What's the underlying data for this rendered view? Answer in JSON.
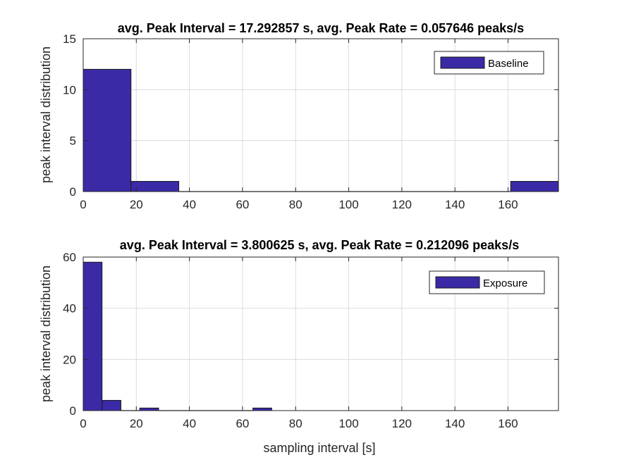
{
  "chart_data": [
    {
      "type": "bar",
      "title": "avg. Peak Interval = 17.292857 s, avg. Peak Rate = 0.057646 peaks/s",
      "xlabel": "",
      "ylabel": "peak interval distribution",
      "xlim": [
        0,
        179
      ],
      "ylim": [
        0,
        15
      ],
      "xticks": [
        "0",
        "20",
        "40",
        "60",
        "80",
        "100",
        "120",
        "140",
        "160"
      ],
      "yticks": [
        "0",
        "5",
        "10",
        "15"
      ],
      "grid": true,
      "legend_position": "top-right",
      "series": [
        {
          "name": "Baseline",
          "bins": [
            {
              "x0": 0,
              "x1": 18,
              "value": 12
            },
            {
              "x0": 18,
              "x1": 36,
              "value": 1
            },
            {
              "x0": 36,
              "x1": 54,
              "value": 0
            },
            {
              "x0": 54,
              "x1": 72,
              "value": 0
            },
            {
              "x0": 72,
              "x1": 90,
              "value": 0
            },
            {
              "x0": 90,
              "x1": 108,
              "value": 0
            },
            {
              "x0": 108,
              "x1": 126,
              "value": 0
            },
            {
              "x0": 126,
              "x1": 144,
              "value": 0
            },
            {
              "x0": 144,
              "x1": 161,
              "value": 0
            },
            {
              "x0": 161,
              "x1": 179,
              "value": 1
            }
          ]
        }
      ]
    },
    {
      "type": "bar",
      "title": "avg. Peak Interval = 3.800625 s, avg. Peak Rate = 0.212096 peaks/s",
      "xlabel": "sampling interval [s]",
      "ylabel": "peak interval distribution",
      "xlim": [
        0,
        179
      ],
      "ylim": [
        0,
        60
      ],
      "xticks": [
        "0",
        "20",
        "40",
        "60",
        "80",
        "100",
        "120",
        "140",
        "160"
      ],
      "yticks": [
        "0",
        "20",
        "40",
        "60"
      ],
      "grid": true,
      "legend_position": "top-right",
      "series": [
        {
          "name": "Exposure",
          "bins": [
            {
              "x0": 0,
              "x1": 7.1,
              "value": 58
            },
            {
              "x0": 7.1,
              "x1": 14.2,
              "value": 4
            },
            {
              "x0": 14.2,
              "x1": 21.3,
              "value": 0
            },
            {
              "x0": 21.3,
              "x1": 28.4,
              "value": 1
            },
            {
              "x0": 28.4,
              "x1": 35.5,
              "value": 0
            },
            {
              "x0": 35.5,
              "x1": 42.6,
              "value": 0
            },
            {
              "x0": 42.6,
              "x1": 49.7,
              "value": 0
            },
            {
              "x0": 49.7,
              "x1": 56.8,
              "value": 0
            },
            {
              "x0": 56.8,
              "x1": 63.9,
              "value": 0
            },
            {
              "x0": 63.9,
              "x1": 71.0,
              "value": 1
            }
          ]
        }
      ]
    }
  ],
  "colors": {
    "bar_fill": "#3a2aa6",
    "bar_edge": "#1a1a1a",
    "grid": "#dcdcdc",
    "axis": "#262626"
  }
}
